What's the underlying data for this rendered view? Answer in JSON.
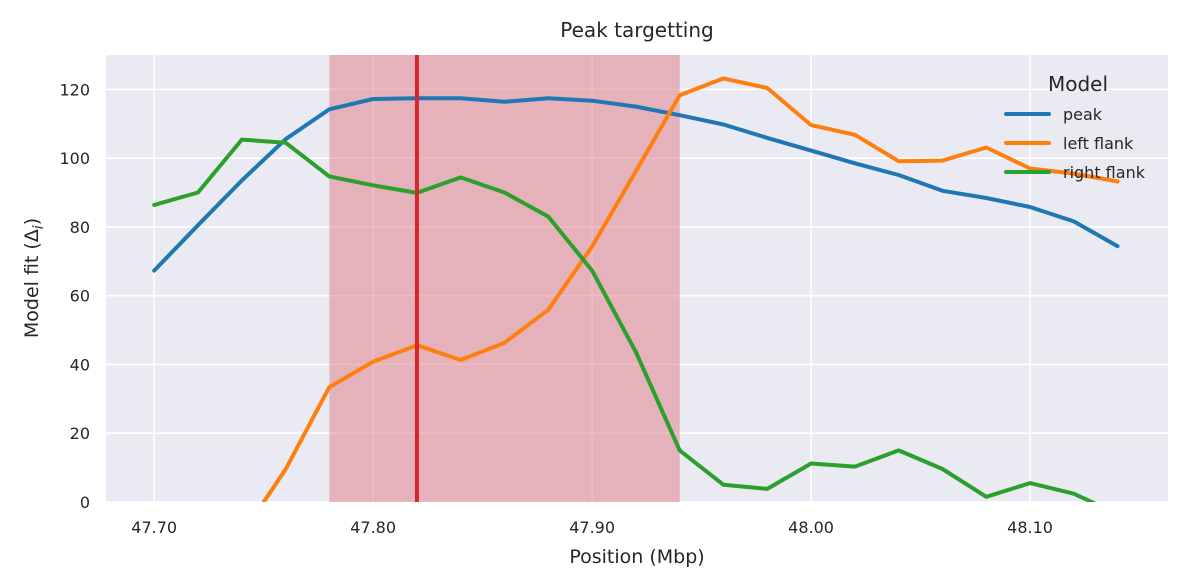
{
  "chart_data": {
    "type": "line",
    "title": "Peak targetting",
    "xlabel": "Position (Mbp)",
    "ylabel": "Model fit (Δ",
    "ylabel_sub": "i",
    "ylabel_close": ")",
    "xlim": [
      47.678,
      48.163
    ],
    "ylim": [
      0,
      130
    ],
    "xticks": [
      47.7,
      47.8,
      47.9,
      48.0,
      48.1
    ],
    "xtick_labels": [
      "47.70",
      "47.80",
      "47.90",
      "48.00",
      "48.10"
    ],
    "yticks": [
      0,
      20,
      40,
      60,
      80,
      100,
      120
    ],
    "ytick_labels": [
      "0",
      "20",
      "40",
      "60",
      "80",
      "100",
      "120"
    ],
    "grid": true,
    "legend_title": "Model",
    "legend_position": "top-right",
    "shaded_region": {
      "x": [
        47.78,
        47.94
      ],
      "color": "#e07a84"
    },
    "vertical_line": {
      "x": 47.82,
      "color": "#d62728"
    },
    "series": [
      {
        "name": "peak",
        "color": "#1f77b4",
        "x": [
          47.7,
          47.72,
          47.74,
          47.76,
          47.78,
          47.8,
          47.82,
          47.84,
          47.86,
          47.88,
          47.9,
          47.92,
          47.94,
          47.96,
          47.98,
          48.0,
          48.02,
          48.04,
          48.06,
          48.08,
          48.1,
          48.12,
          48.14
        ],
        "y": [
          67.3,
          80.5,
          93.5,
          105.5,
          114.2,
          117.2,
          117.4,
          117.4,
          116.4,
          117.4,
          116.7,
          115.0,
          112.5,
          109.8,
          105.9,
          102.2,
          98.5,
          95.1,
          90.5,
          88.4,
          85.8,
          81.6,
          74.4
        ]
      },
      {
        "name": "left flank",
        "color": "#ff7f0e",
        "x": [
          47.74,
          47.75,
          47.76,
          47.78,
          47.8,
          47.82,
          47.84,
          47.86,
          47.88,
          47.9,
          47.92,
          47.94,
          47.96,
          47.98,
          48.0,
          48.02,
          48.04,
          48.06,
          48.08,
          48.1,
          48.12,
          48.14
        ],
        "y": [
          -15,
          0,
          9.5,
          33.4,
          40.8,
          45.6,
          41.3,
          46.3,
          55.9,
          74.3,
          96.2,
          118.3,
          123.2,
          120.4,
          109.6,
          106.8,
          99.1,
          99.3,
          103.1,
          97.0,
          95.5,
          93.2
        ]
      },
      {
        "name": "right flank",
        "color": "#2ca02c",
        "x": [
          47.7,
          47.72,
          47.74,
          47.76,
          47.78,
          47.8,
          47.82,
          47.84,
          47.86,
          47.88,
          47.9,
          47.92,
          47.94,
          47.96,
          47.98,
          48.0,
          48.02,
          48.04,
          48.06,
          48.08,
          48.1,
          48.12,
          48.14
        ],
        "y": [
          86.4,
          90.0,
          105.4,
          104.5,
          94.7,
          92.1,
          89.9,
          94.4,
          90.0,
          83.0,
          67.3,
          43.6,
          15.0,
          5.0,
          3.8,
          11.2,
          10.3,
          15.0,
          9.6,
          1.5,
          5.5,
          2.4,
          -3.5
        ]
      }
    ]
  }
}
